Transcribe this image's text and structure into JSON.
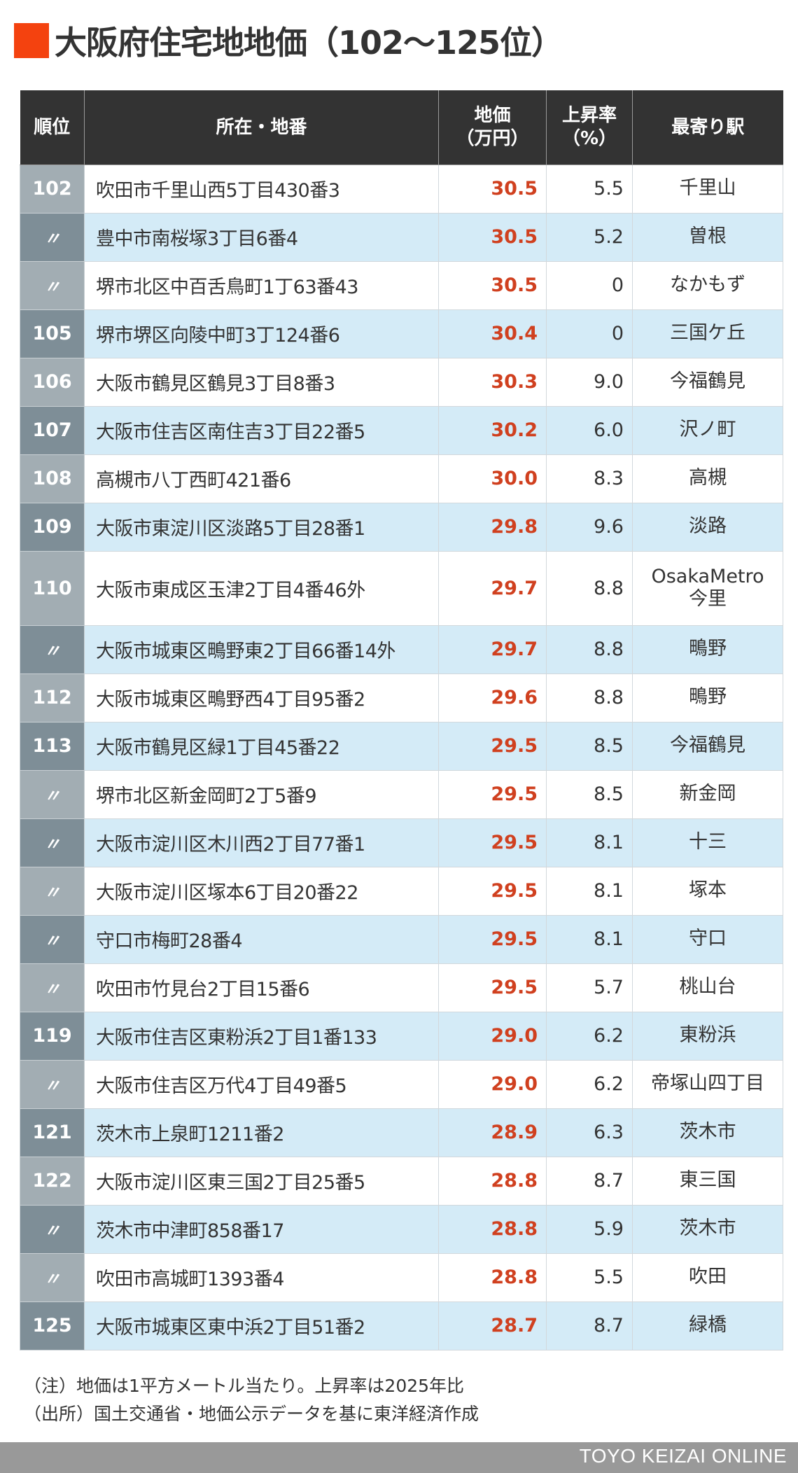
{
  "title": {
    "text": "大阪府住宅地地価（102〜125位）",
    "accent_color": "#f4420f"
  },
  "table": {
    "headers": {
      "rank": "順位",
      "address": "所在・地番",
      "price_line1": "地価",
      "price_line2": "（万円）",
      "rate_line1": "上昇率",
      "rate_line2": "（%）",
      "station": "最寄り駅"
    },
    "rows": [
      {
        "rank": "102",
        "address": "吹田市千里山西5丁目430番3",
        "price": "30.5",
        "rate": "5.5",
        "station": "千里山"
      },
      {
        "rank": "〃",
        "address": "豊中市南桜塚3丁目6番4",
        "price": "30.5",
        "rate": "5.2",
        "station": "曽根"
      },
      {
        "rank": "〃",
        "address": "堺市北区中百舌鳥町1丁63番43",
        "price": "30.5",
        "rate": "0",
        "station": "なかもず"
      },
      {
        "rank": "105",
        "address": "堺市堺区向陵中町3丁124番6",
        "price": "30.4",
        "rate": "0",
        "station": "三国ケ丘"
      },
      {
        "rank": "106",
        "address": "大阪市鶴見区鶴見3丁目8番3",
        "price": "30.3",
        "rate": "9.0",
        "station": "今福鶴見"
      },
      {
        "rank": "107",
        "address": "大阪市住吉区南住吉3丁目22番5",
        "price": "30.2",
        "rate": "6.0",
        "station": "沢ノ町"
      },
      {
        "rank": "108",
        "address": "高槻市八丁西町421番6",
        "price": "30.0",
        "rate": "8.3",
        "station": "高槻"
      },
      {
        "rank": "109",
        "address": "大阪市東淀川区淡路5丁目28番1",
        "price": "29.8",
        "rate": "9.6",
        "station": "淡路"
      },
      {
        "rank": "110",
        "address": "大阪市東成区玉津2丁目4番46外",
        "price": "29.7",
        "rate": "8.8",
        "station_line1": "OsakaMetro",
        "station_line2": "今里"
      },
      {
        "rank": "〃",
        "address": "大阪市城東区鴫野東2丁目66番14外",
        "price": "29.7",
        "rate": "8.8",
        "station": "鴫野"
      },
      {
        "rank": "112",
        "address": "大阪市城東区鴫野西4丁目95番2",
        "price": "29.6",
        "rate": "8.8",
        "station": "鴫野"
      },
      {
        "rank": "113",
        "address": "大阪市鶴見区緑1丁目45番22",
        "price": "29.5",
        "rate": "8.5",
        "station": "今福鶴見"
      },
      {
        "rank": "〃",
        "address": "堺市北区新金岡町2丁5番9",
        "price": "29.5",
        "rate": "8.5",
        "station": "新金岡"
      },
      {
        "rank": "〃",
        "address": "大阪市淀川区木川西2丁目77番1",
        "price": "29.5",
        "rate": "8.1",
        "station": "十三"
      },
      {
        "rank": "〃",
        "address": "大阪市淀川区塚本6丁目20番22",
        "price": "29.5",
        "rate": "8.1",
        "station": "塚本"
      },
      {
        "rank": "〃",
        "address": "守口市梅町28番4",
        "price": "29.5",
        "rate": "8.1",
        "station": "守口"
      },
      {
        "rank": "〃",
        "address": "吹田市竹見台2丁目15番6",
        "price": "29.5",
        "rate": "5.7",
        "station": "桃山台"
      },
      {
        "rank": "119",
        "address": "大阪市住吉区東粉浜2丁目1番133",
        "price": "29.0",
        "rate": "6.2",
        "station": "東粉浜"
      },
      {
        "rank": "〃",
        "address": "大阪市住吉区万代4丁目49番5",
        "price": "29.0",
        "rate": "6.2",
        "station": "帝塚山四丁目"
      },
      {
        "rank": "121",
        "address": "茨木市上泉町1211番2",
        "price": "28.9",
        "rate": "6.3",
        "station": "茨木市"
      },
      {
        "rank": "122",
        "address": "大阪市淀川区東三国2丁目25番5",
        "price": "28.8",
        "rate": "8.7",
        "station": "東三国"
      },
      {
        "rank": "〃",
        "address": "茨木市中津町858番17",
        "price": "28.8",
        "rate": "5.9",
        "station": "茨木市"
      },
      {
        "rank": "〃",
        "address": "吹田市高城町1393番4",
        "price": "28.8",
        "rate": "5.5",
        "station": "吹田"
      },
      {
        "rank": "125",
        "address": "大阪市城東区東中浜2丁目51番2",
        "price": "28.7",
        "rate": "8.7",
        "station": "緑橋"
      }
    ],
    "colors": {
      "header_bg": "#333333",
      "row_alt_bg": "#d4ebf7",
      "rank_light_bg": "#a2adb3",
      "rank_dark_bg": "#7e8e97",
      "price_text": "#d0401f"
    }
  },
  "notes": {
    "note": "（注）地価は1平方メートル当たり。上昇率は2025年比",
    "source": "（出所）国土交通省・地価公示データを基に東洋経済作成"
  },
  "footer": {
    "brand": "TOYO KEIZAI ONLINE"
  }
}
